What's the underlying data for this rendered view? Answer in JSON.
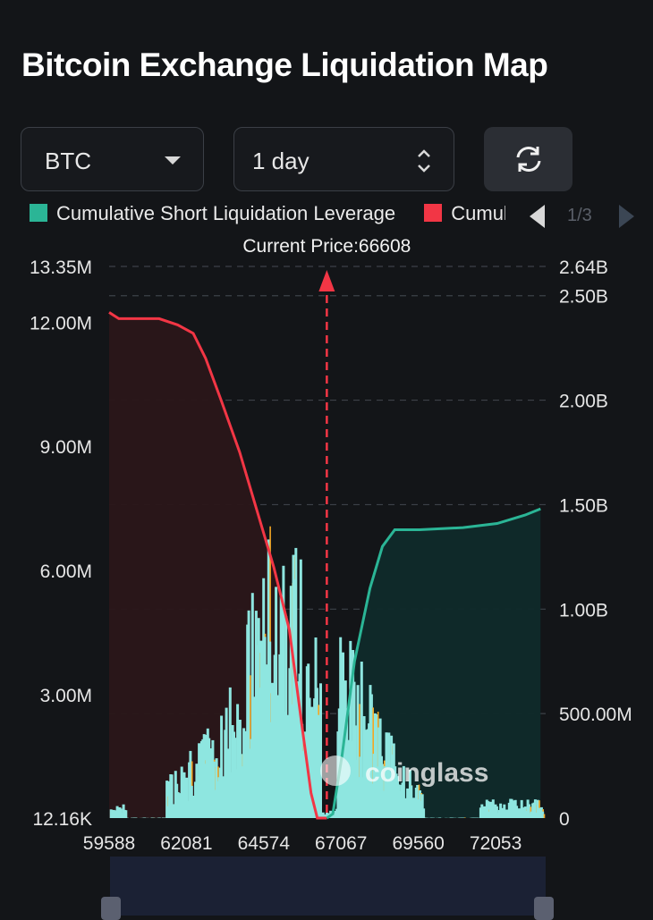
{
  "header": {
    "title": "Bitcoin Exchange Liquidation Map"
  },
  "controls": {
    "coin": "BTC",
    "range": "1 day"
  },
  "legend": {
    "items": [
      {
        "label": "Cumulative Short Liquidation Leverage",
        "color": "#2bb596"
      },
      {
        "label": "Cumulative Long Liquidation Leverage",
        "color": "#f23645"
      }
    ],
    "page": "1/3"
  },
  "colors": {
    "short": "#2bb596",
    "long": "#f23645",
    "bar": "#8ee6e0",
    "bar_accent": "#f5a623",
    "price_line": "#f23645"
  },
  "watermark": "coinglass",
  "chart_data": {
    "type": "bar",
    "price_label": "Current Price:66608",
    "current_price": 66608,
    "x_ticks": [
      "59588",
      "62081",
      "64574",
      "67067",
      "69560",
      "72053"
    ],
    "x_range": [
      59588,
      73550
    ],
    "left_axis": {
      "ticks": [
        "13.35M",
        "12.00M",
        "9.00M",
        "6.00M",
        "3.00M",
        "12.16K"
      ],
      "tick_values": [
        13350000,
        12000000,
        9000000,
        6000000,
        3000000,
        12160
      ],
      "range": [
        12160,
        13350000
      ]
    },
    "right_axis": {
      "ticks": [
        "2.64B",
        "2.50B",
        "2.00B",
        "1.50B",
        "1.00B",
        "500.00M",
        "0"
      ],
      "tick_values": [
        2640000000,
        2500000000,
        2000000000,
        1500000000,
        1000000000,
        500000000,
        0
      ],
      "range": [
        0,
        2640000000
      ]
    },
    "long_cumulative": [
      [
        59588,
        2420000000.0
      ],
      [
        59900,
        2390000000.0
      ],
      [
        61200,
        2390000000.0
      ],
      [
        61800,
        2360000000.0
      ],
      [
        62300,
        2320000000.0
      ],
      [
        62700,
        2200000000.0
      ],
      [
        63200,
        2000000000.0
      ],
      [
        63800,
        1750000000.0
      ],
      [
        64300,
        1500000000.0
      ],
      [
        64900,
        1200000000.0
      ],
      [
        65400,
        900000000.0
      ],
      [
        65800,
        450000000.0
      ],
      [
        66100,
        120000000.0
      ],
      [
        66300,
        0.0
      ],
      [
        66608,
        0.0
      ]
    ],
    "short_cumulative": [
      [
        66608,
        0.0
      ],
      [
        66800,
        20000000.0
      ],
      [
        67100,
        300000000.0
      ],
      [
        67500,
        750000000.0
      ],
      [
        68000,
        1100000000.0
      ],
      [
        68400,
        1300000000.0
      ],
      [
        68800,
        1380000000.0
      ],
      [
        69600,
        1380000000.0
      ],
      [
        71000,
        1390000000.0
      ],
      [
        72100,
        1410000000.0
      ],
      [
        73000,
        1450000000.0
      ],
      [
        73500,
        1480000000.0
      ]
    ],
    "grid": true
  }
}
